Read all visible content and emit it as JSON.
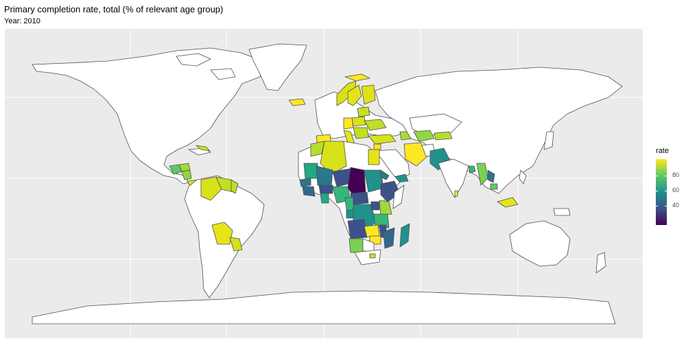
{
  "header": {
    "title": "Primary completion rate, total (% of relevant age group)",
    "subtitle": "Year: 2010"
  },
  "legend": {
    "title": "rate",
    "ticks": [
      "80",
      "60",
      "40"
    ],
    "colorscale": [
      "#440154",
      "#3b528b",
      "#21918c",
      "#5ec962",
      "#fde725"
    ]
  },
  "map": {
    "background": "#ebebeb",
    "land_no_data": "#ffffff",
    "border_color": "#4d4d4d"
  }
}
